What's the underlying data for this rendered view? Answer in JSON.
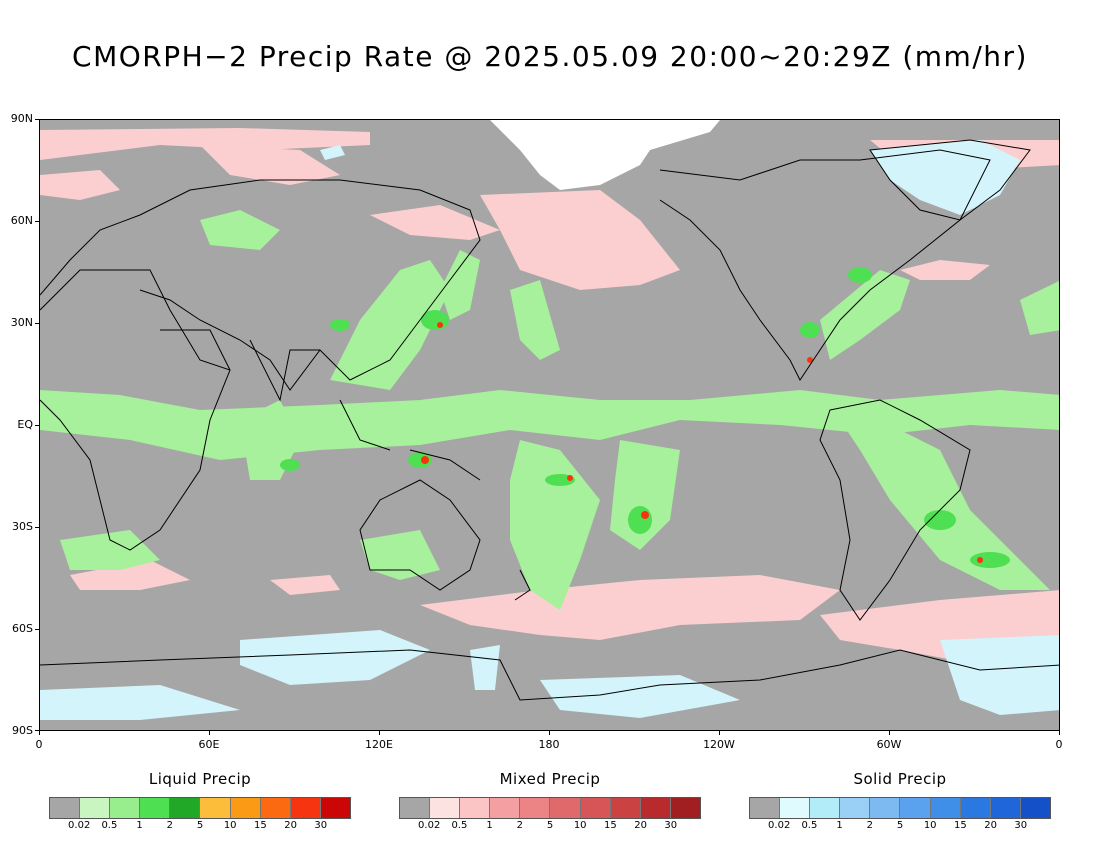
{
  "title": "CMORPH−2 Precip Rate @ 2025.05.09 20:00~20:29Z (mm/hr)",
  "map": {
    "projection": "equirectangular",
    "background_color": "#a6a6a6",
    "coastline_color": "#000000",
    "lat_labels": [
      "90N",
      "60N",
      "30N",
      "EQ",
      "30S",
      "60S",
      "90S"
    ],
    "lon_labels": [
      "0",
      "60E",
      "120E",
      "180",
      "120W",
      "60W",
      "0"
    ]
  },
  "legends": [
    {
      "title": "Liquid Precip",
      "labels": [
        "0.02",
        "0.5",
        "1",
        "2",
        "5",
        "10",
        "15",
        "20",
        "30"
      ],
      "colors": [
        "#a6a6a6",
        "#c8f5c0",
        "#98ee8c",
        "#4fdf52",
        "#20a826",
        "#fbbd3a",
        "#fb9a14",
        "#fb6a10",
        "#f73410",
        "#cc0606"
      ]
    },
    {
      "title": "Mixed Precip",
      "labels": [
        "0.02",
        "0.5",
        "1",
        "2",
        "5",
        "10",
        "15",
        "20",
        "30"
      ],
      "colors": [
        "#a6a6a6",
        "#fde2e2",
        "#fbc5c6",
        "#f4a0a3",
        "#ec8385",
        "#e06a6b",
        "#d75556",
        "#cb4243",
        "#b82a2b",
        "#a11f21"
      ]
    },
    {
      "title": "Solid Precip",
      "labels": [
        "0.02",
        "0.5",
        "1",
        "2",
        "5",
        "10",
        "15",
        "20",
        "30"
      ],
      "colors": [
        "#a6a6a6",
        "#e0fbfd",
        "#b2ecf8",
        "#9ad0f6",
        "#7dbaf2",
        "#5aa2ee",
        "#3f8ee8",
        "#2a78e2",
        "#1f66da",
        "#1450c8"
      ]
    }
  ]
}
